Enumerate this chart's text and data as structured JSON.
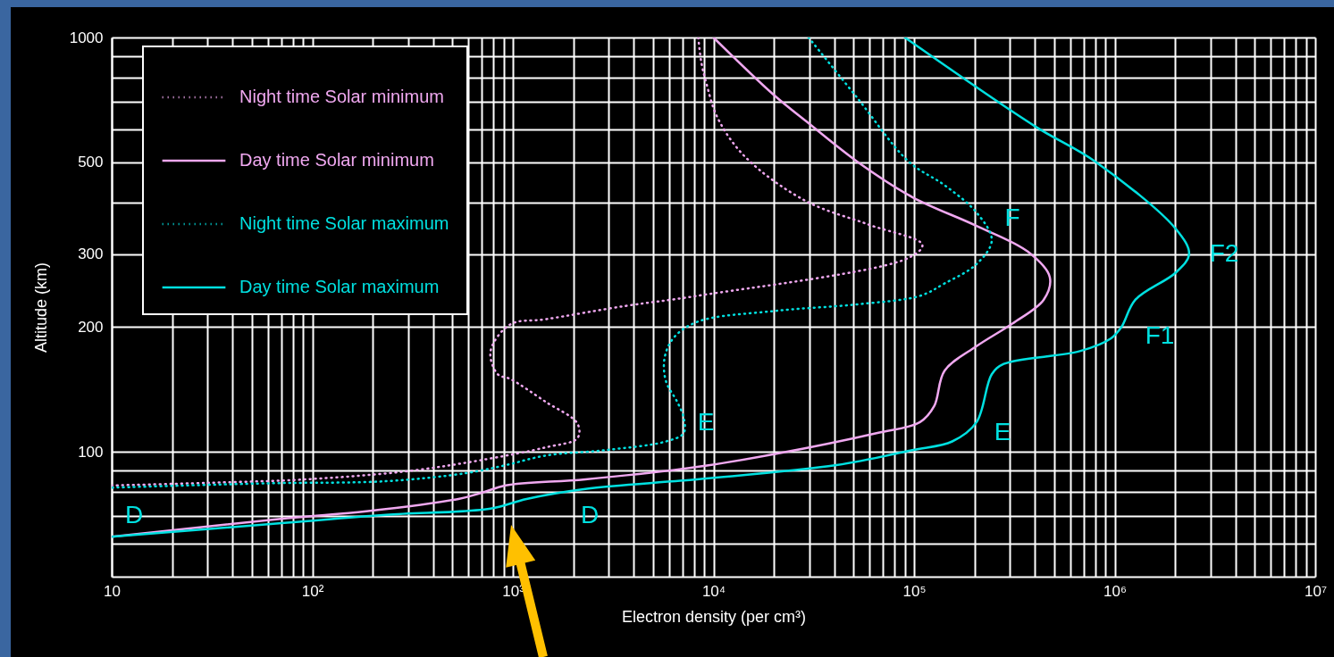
{
  "chart_data": {
    "type": "line",
    "xlabel": "Electron density (per cm³)",
    "ylabel": "Altitude (km)",
    "log": "xy",
    "grid": true,
    "legend": "top left",
    "xlim": [
      10,
      10000000
    ],
    "ylim": [
      50,
      1000
    ],
    "xticks": [
      10,
      {
        "value": 20,
        "label": null
      },
      {
        "value": 30,
        "label": null
      },
      {
        "value": 40,
        "label": null
      },
      {
        "value": 50,
        "label": null
      },
      {
        "value": 60,
        "label": null
      },
      {
        "value": 70,
        "label": null
      },
      {
        "value": 80,
        "label": null
      },
      {
        "value": 90,
        "label": null
      },
      {
        "value": 100,
        "label": "10²"
      },
      {
        "value": 200,
        "label": null
      },
      {
        "value": 300,
        "label": null
      },
      {
        "value": 400,
        "label": null
      },
      {
        "value": 500,
        "label": null
      },
      {
        "value": 600,
        "label": null
      },
      {
        "value": 700,
        "label": null
      },
      {
        "value": 800,
        "label": null
      },
      {
        "value": 900,
        "label": null
      },
      {
        "value": 1000,
        "label": "10³"
      },
      {
        "value": 2000,
        "label": null
      },
      {
        "value": 3000,
        "label": null
      },
      {
        "value": 4000,
        "label": null
      },
      {
        "value": 5000,
        "label": null
      },
      {
        "value": 6000,
        "label": null
      },
      {
        "value": 7000,
        "label": null
      },
      {
        "value": 8000,
        "label": null
      },
      {
        "value": 9000,
        "label": null
      },
      {
        "value": 10000,
        "label": "10⁴"
      },
      {
        "value": 20000,
        "label": null
      },
      {
        "value": 30000,
        "label": null
      },
      {
        "value": 40000,
        "label": null
      },
      {
        "value": 50000,
        "label": null
      },
      {
        "value": 60000,
        "label": null
      },
      {
        "value": 70000,
        "label": null
      },
      {
        "value": 80000,
        "label": null
      },
      {
        "value": 90000,
        "label": null
      },
      {
        "value": 100000,
        "label": "10⁵"
      },
      {
        "value": 200000,
        "label": null
      },
      {
        "value": 300000,
        "label": null
      },
      {
        "value": 400000,
        "label": null
      },
      {
        "value": 500000,
        "label": null
      },
      {
        "value": 600000,
        "label": null
      },
      {
        "value": 700000,
        "label": null
      },
      {
        "value": 800000,
        "label": null
      },
      {
        "value": 900000,
        "label": null
      },
      {
        "value": 1000000,
        "label": "10⁶"
      },
      {
        "value": 2000000,
        "label": null
      },
      {
        "value": 3000000,
        "label": null
      },
      {
        "value": 4000000,
        "label": null
      },
      {
        "value": 5000000,
        "label": null
      },
      {
        "value": 6000000,
        "label": null
      },
      {
        "value": 7000000,
        "label": null
      },
      {
        "value": 8000000,
        "label": null
      },
      {
        "value": 9000000,
        "label": null
      },
      {
        "value": 10000000,
        "label": "10⁷"
      }
    ],
    "yticks": [
      {
        "value": 60,
        "label": null
      },
      {
        "value": 70,
        "label": null
      },
      {
        "value": 80,
        "label": null
      },
      {
        "value": 90,
        "label": null
      },
      100,
      200,
      300,
      {
        "value": 400,
        "label": null
      },
      500,
      {
        "value": 600,
        "label": null
      },
      {
        "value": 700,
        "label": null
      },
      {
        "value": 800,
        "label": null
      },
      {
        "value": 900,
        "label": null
      },
      1000
    ],
    "series": [
      {
        "name": "Night time Solar minimum",
        "color": "#f0a8f0",
        "line_style": "dotted",
        "x": [
          8400,
          8700,
          9200,
          10500,
          14400,
          28600,
          59000,
          110000,
          94000,
          8300,
          3640,
          1460,
          970,
          774,
          840,
          970,
          1460,
          2100,
          2100,
          1460,
          735,
          295,
          94,
          30,
          10
        ],
        "values": [
          1000,
          871,
          778,
          639,
          515,
          404,
          354,
          316,
          294,
          238,
          225,
          209,
          203,
          175,
          154,
          150,
          132,
          117,
          108,
          102.6,
          96,
          89.8,
          85.9,
          84.2,
          83
        ]
      },
      {
        "name": "Day time Solar minimum",
        "color": "#f0a8f0",
        "line_style": "solid",
        "x": [
          10000,
          19800,
          29800,
          52000,
          98000,
          205000,
          370000,
          475000,
          443000,
          309000,
          205000,
          142000,
          126000,
          107000,
          65000,
          20600,
          8300,
          2300,
          920,
          706,
          535,
          186,
          75,
          10
        ],
        "values": [
          1000,
          730,
          621,
          502,
          412,
          351,
          304,
          264,
          233,
          204,
          180,
          157,
          129,
          118,
          111,
          99,
          92,
          85.9,
          83,
          79.8,
          77,
          71.9,
          69.2,
          62.4
        ]
      },
      {
        "name": "Night time Solar maximum",
        "color": "#00e0e0",
        "line_style": "dotted",
        "x": [
          29800,
          52000,
          94000,
          142000,
          205000,
          244000,
          205000,
          142000,
          107000,
          52000,
          20600,
          8300,
          6300,
          5700,
          5800,
          6600,
          7100,
          7100,
          5800,
          2900,
          1460,
          920,
          586,
          235,
          60,
          10
        ],
        "values": [
          1000,
          716,
          502,
          440,
          378,
          324,
          284,
          255,
          238,
          227,
          219,
          206,
          188,
          168,
          148,
          132,
          121,
          111,
          106,
          101,
          98,
          92.9,
          88.9,
          85,
          84,
          82
        ]
      },
      {
        "name": "Day time Solar maximum",
        "color": "#00e0e0",
        "line_style": "solid",
        "x": [
          90000,
          400000,
          800000,
          2020000,
          2350000,
          2020000,
          1270000,
          1080000,
          960000,
          670000,
          280000,
          244000,
          205000,
          155000,
          98000,
          41000,
          8300,
          2300,
          1170,
          774,
          233,
          75,
          10
        ],
        "values": [
          1000,
          611,
          502,
          345,
          300,
          271,
          233,
          200,
          188,
          175,
          163,
          154,
          118,
          106,
          101,
          92.9,
          85.9,
          81.4,
          77,
          73,
          70.5,
          67.5,
          62.4
        ]
      }
    ],
    "annotations": [
      "D",
      "D",
      "E",
      "E",
      "F",
      "F1",
      "F2"
    ]
  }
}
